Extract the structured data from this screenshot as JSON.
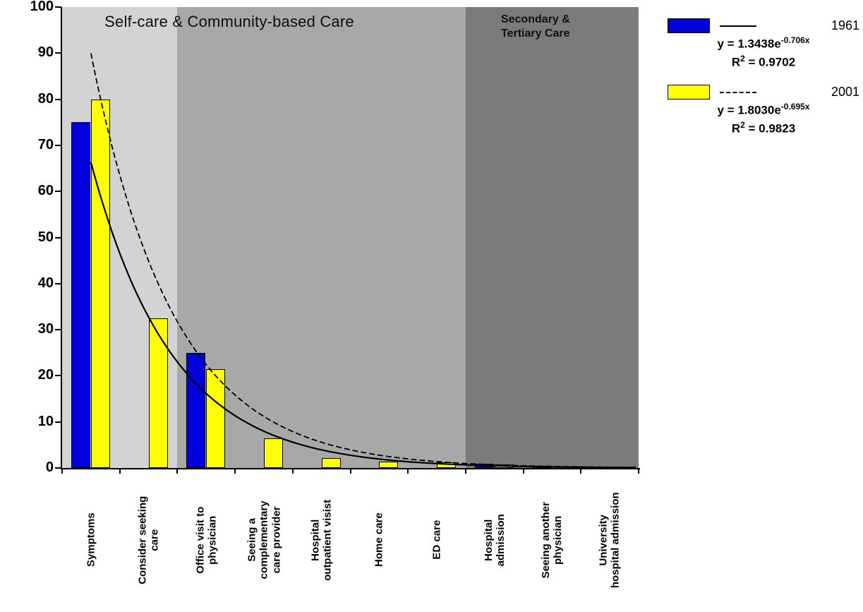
{
  "chart_data": {
    "type": "bar",
    "title": "",
    "categories": [
      "Symptoms",
      "Consider seeking\ncare",
      "Office visit to\nphysician",
      "Seeing a\ncomplementary\ncare provider",
      "Hospital\noutpatient visist",
      "Home care",
      "ED care",
      "Hospital\nadmission",
      "Seeing another\nphysician",
      "University\nhospital admission"
    ],
    "series": [
      {
        "name": "1961",
        "color": "#0000dd",
        "values": [
          75,
          0,
          25,
          0,
          0,
          0,
          0,
          0.9,
          0.5,
          0.1
        ],
        "trendline": {
          "style": "solid",
          "a": 1.3438,
          "b": -0.706
        },
        "legend": {
          "eq_base": "y = 1.3438e",
          "eq_exp": "-0.706x",
          "r2_prefix": "R",
          "r2_sup": "2",
          "r2_value": " = 0.9702"
        }
      },
      {
        "name": "2001",
        "color": "#ffff00",
        "values": [
          80,
          32.5,
          21.5,
          6.5,
          2.1,
          1.4,
          1.3,
          0.8,
          0,
          0.1
        ],
        "trendline": {
          "style": "dashed",
          "a": 1.803,
          "b": -0.695
        },
        "legend": {
          "eq_base": "y = 1.8030e",
          "eq_exp": "-0.695x",
          "r2_prefix": "R",
          "r2_sup": "2",
          "r2_value": " = 0.9823"
        }
      }
    ],
    "ylim": [
      0,
      100
    ],
    "yticks": [
      0,
      10,
      20,
      30,
      40,
      50,
      60,
      70,
      80,
      90,
      100
    ],
    "grid": false,
    "legend_position": "top-right",
    "zones": [
      {
        "label": "Self-care & Community-based Care",
        "start": 0,
        "end": 2,
        "color": "#d3d3d3"
      },
      {
        "label": "",
        "start": 2,
        "end": 7,
        "color": "#a8a8a8"
      },
      {
        "label": "Secondary &\nTertiary Care",
        "start": 7,
        "end": 10,
        "color": "#7b7b7b"
      }
    ]
  }
}
